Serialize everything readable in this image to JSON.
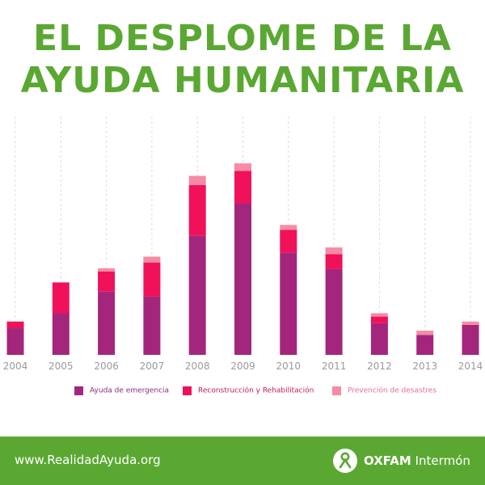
{
  "title": {
    "line1": "EL DESPLOME DE LA",
    "line2": "AYUDA HUMANITARIA"
  },
  "chart_data": {
    "type": "bar",
    "stacked": true,
    "categories": [
      "2004",
      "2005",
      "2006",
      "2007",
      "2008",
      "2009",
      "2010",
      "2011",
      "2012",
      "2013",
      "2014"
    ],
    "series": [
      {
        "name": "Ayuda de emergencia",
        "color": "#a4267c",
        "values": [
          32,
          50,
          76,
          70,
          143,
          182,
          123,
          103,
          38,
          24,
          36
        ]
      },
      {
        "name": "Reconstrucción y Rehabilitación",
        "color": "#f0115a",
        "values": [
          8,
          37,
          24,
          41,
          61,
          39,
          27,
          18,
          8,
          0,
          0
        ]
      },
      {
        "name": "Prevención de desastres",
        "color": "#f78aa4",
        "values": [
          0,
          0,
          4,
          7,
          11,
          9,
          6,
          8,
          4,
          5,
          4
        ]
      }
    ],
    "ylim": [
      0,
      300
    ],
    "grid": "vertical-dashed",
    "legend": "bottom"
  },
  "footer": {
    "url": "www.RealidadAyuda.org",
    "brand_bold": "OXFAM",
    "brand_rest": "Intermón"
  },
  "colors": {
    "green": "#5aa832",
    "axis_text": "#9a9a9a",
    "grid": "#dcdcdc"
  }
}
